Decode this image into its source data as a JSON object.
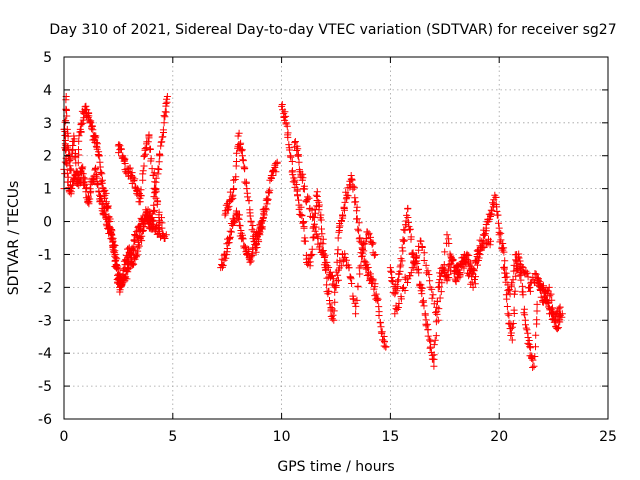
{
  "chart_data": {
    "type": "scatter",
    "title": "Day 310 of 2021, Sidereal Day-to-day VTEC variation (SDTVAR) for receiver sg27",
    "xlabel": "GPS time / hours",
    "ylabel": "SDTVAR / TECUs",
    "xlim": [
      0,
      25
    ],
    "ylim": [
      -6,
      5
    ],
    "xticks": [
      0,
      5,
      10,
      15,
      20,
      25
    ],
    "yticks": [
      -6,
      -5,
      -4,
      -3,
      -2,
      -1,
      0,
      1,
      2,
      3,
      4,
      5
    ],
    "grid": true,
    "marker": "+",
    "color": "#ff0000",
    "series": [
      {
        "name": "SDTVAR",
        "segments": [
          {
            "x": [
              0.0,
              0.1,
              0.2,
              0.3,
              0.45,
              0.6,
              0.75,
              0.9,
              1.05,
              1.2,
              1.35,
              1.5,
              1.65,
              1.8,
              1.95,
              2.1,
              2.25,
              2.4,
              2.55,
              2.7,
              2.85,
              3.0,
              3.2,
              3.4,
              3.6,
              3.75,
              3.9,
              4.05,
              4.2,
              4.4,
              4.6,
              4.75
            ],
            "y": [
              1.0,
              3.8,
              2.2,
              1.6,
              2.6,
              1.2,
              2.8,
              3.3,
              3.4,
              3.0,
              2.6,
              2.4,
              1.8,
              1.0,
              0.6,
              0.0,
              -0.6,
              -1.4,
              -2.0,
              -1.7,
              -1.2,
              -0.8,
              -1.3,
              -0.8,
              -0.3,
              0.2,
              0.0,
              -0.2,
              1.0,
              2.0,
              3.0,
              3.8
            ]
          },
          {
            "x": [
              0.0,
              0.1,
              0.25,
              0.4,
              0.55,
              0.7,
              0.85,
              1.0,
              1.15,
              1.3,
              1.45,
              1.6,
              1.75,
              1.9,
              2.05,
              2.2,
              2.35,
              2.5,
              2.65,
              2.8,
              2.95,
              3.1,
              3.25,
              3.45,
              3.6,
              3.8,
              4.0,
              4.2,
              4.4,
              4.7
            ],
            "y": [
              2.8,
              2.2,
              0.9,
              1.1,
              1.4,
              1.2,
              1.6,
              1.0,
              0.6,
              1.2,
              1.6,
              0.9,
              0.4,
              0.2,
              -0.2,
              -0.5,
              -1.0,
              -1.6,
              -1.9,
              -1.8,
              -1.4,
              -1.0,
              -0.6,
              -0.2,
              0.0,
              0.3,
              0.1,
              -0.2,
              -0.3,
              -0.4
            ]
          },
          {
            "x": [
              2.5,
              2.7,
              2.9,
              3.1,
              3.3,
              3.5,
              3.7,
              3.9,
              4.1,
              4.3,
              4.5
            ],
            "y": [
              2.3,
              2.0,
              1.6,
              1.4,
              1.0,
              0.6,
              2.0,
              2.6,
              1.4,
              0.6,
              -0.2
            ]
          },
          {
            "x": [
              7.2,
              7.4,
              7.6,
              7.8,
              8.0,
              8.2,
              8.4,
              8.6,
              8.8,
              9.0,
              9.2,
              9.4,
              9.6,
              9.8
            ],
            "y": [
              -1.4,
              -1.0,
              -0.5,
              0.0,
              0.2,
              -0.5,
              -0.9,
              -1.2,
              -0.4,
              -0.2,
              0.3,
              0.9,
              1.4,
              1.8
            ]
          },
          {
            "x": [
              7.4,
              7.6,
              7.8,
              8.0,
              8.2,
              8.4,
              8.6,
              8.8,
              9.0,
              9.2
            ],
            "y": [
              0.2,
              0.6,
              1.0,
              2.6,
              2.0,
              1.0,
              0.0,
              -0.8,
              -0.4,
              0.2
            ]
          },
          {
            "x": [
              10.0,
              10.2,
              10.4,
              10.6,
              10.8,
              11.0,
              11.2,
              11.4,
              11.6,
              11.8,
              12.0,
              12.2,
              12.4,
              12.6,
              12.8,
              13.0,
              13.2,
              13.4,
              13.6,
              13.8,
              14.0,
              14.2,
              14.4,
              14.6,
              14.8
            ],
            "y": [
              3.5,
              3.0,
              2.0,
              1.2,
              0.5,
              0.0,
              -1.3,
              -1.0,
              0.8,
              0.2,
              -1.4,
              -2.4,
              -3.0,
              -0.5,
              0.2,
              0.8,
              1.4,
              0.6,
              -0.6,
              -1.2,
              -1.6,
              -1.8,
              -2.4,
              -3.4,
              -3.8
            ]
          },
          {
            "x": [
              10.6,
              10.8,
              11.0,
              11.3,
              11.6,
              11.9,
              12.2,
              12.5,
              12.8,
              13.1,
              13.4,
              13.7,
              14.0,
              14.3
            ],
            "y": [
              2.4,
              1.8,
              1.0,
              0.4,
              -0.4,
              -1.0,
              -1.6,
              -2.0,
              -1.0,
              -1.4,
              -2.8,
              -0.8,
              -0.4,
              -1.0
            ]
          },
          {
            "x": [
              15.0,
              15.2,
              15.4,
              15.6,
              15.8,
              16.0,
              16.2,
              16.4,
              16.6,
              16.8,
              17.0,
              17.2,
              17.4,
              17.6,
              17.8,
              18.0,
              18.2,
              18.4,
              18.6,
              18.8,
              19.0,
              19.2,
              19.4,
              19.6,
              19.8,
              20.0
            ],
            "y": [
              -1.4,
              -2.2,
              -1.6,
              -0.6,
              0.4,
              -1.0,
              -1.2,
              -2.0,
              -2.8,
              -3.6,
              -4.4,
              -2.0,
              -1.4,
              -1.8,
              -1.2,
              -1.4,
              -1.6,
              -1.0,
              -1.2,
              -1.6,
              -1.0,
              -0.6,
              -0.2,
              0.2,
              0.8,
              -0.2
            ]
          },
          {
            "x": [
              15.2,
              15.6,
              16.0,
              16.4,
              16.8,
              17.2,
              17.6,
              18.0,
              18.4,
              18.8,
              19.2,
              19.6
            ],
            "y": [
              -2.8,
              -2.0,
              -1.4,
              -0.6,
              -1.8,
              -3.0,
              -0.4,
              -1.8,
              -1.2,
              -2.0,
              -0.8,
              -0.6
            ]
          },
          {
            "x": [
              20.0,
              20.2,
              20.4,
              20.6,
              20.8,
              21.0,
              21.2,
              21.4,
              21.6,
              21.8,
              22.0,
              22.2,
              22.4,
              22.6,
              22.8
            ],
            "y": [
              -0.4,
              -0.8,
              -2.8,
              -3.6,
              -1.2,
              -1.6,
              -3.0,
              -3.8,
              -4.4,
              -1.8,
              -2.0,
              -2.4,
              -2.8,
              -3.0,
              -2.6
            ]
          },
          {
            "x": [
              20.2,
              20.5,
              20.8,
              21.1,
              21.4,
              21.7,
              22.0,
              22.3,
              22.6,
              22.9
            ],
            "y": [
              -1.4,
              -2.2,
              -1.0,
              -1.4,
              -2.0,
              -1.6,
              -2.4,
              -2.0,
              -3.2,
              -2.8
            ]
          }
        ]
      }
    ]
  }
}
